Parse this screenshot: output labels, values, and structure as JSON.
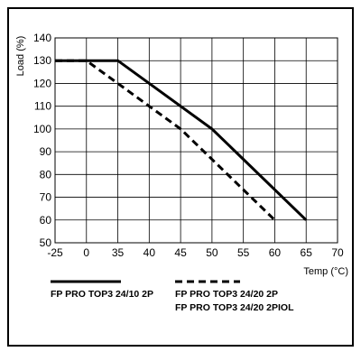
{
  "chart_data": {
    "type": "line",
    "xlabel": "Temp (°C)",
    "ylabel": "Load (%)",
    "xlim": [
      -25,
      70
    ],
    "ylim": [
      50,
      140
    ],
    "x_ticks": [
      "-25",
      "0",
      "35",
      "40",
      "45",
      "50",
      "55",
      "60",
      "65",
      "70"
    ],
    "y_ticks": [
      "50",
      "60",
      "70",
      "80",
      "90",
      "100",
      "110",
      "120",
      "130",
      "140"
    ],
    "grid": true,
    "legend_position": "bottom",
    "series": [
      {
        "name": "FP PRO TOP3 24/10 2P",
        "style": "solid",
        "color": "#000000",
        "points": [
          [
            -25,
            130
          ],
          [
            35,
            130
          ],
          [
            50,
            100
          ],
          [
            65,
            60
          ]
        ]
      },
      {
        "name": "FP PRO TOP3 24/20 2P\nFP PRO TOP3 24/20 2PIOL",
        "legend_lines": [
          "FP PRO TOP3 24/20 2P",
          "FP PRO TOP3 24/20 2PIOL"
        ],
        "style": "dashed",
        "color": "#000000",
        "points": [
          [
            -25,
            130
          ],
          [
            0,
            130
          ],
          [
            45,
            100
          ],
          [
            60,
            60
          ]
        ]
      }
    ]
  }
}
